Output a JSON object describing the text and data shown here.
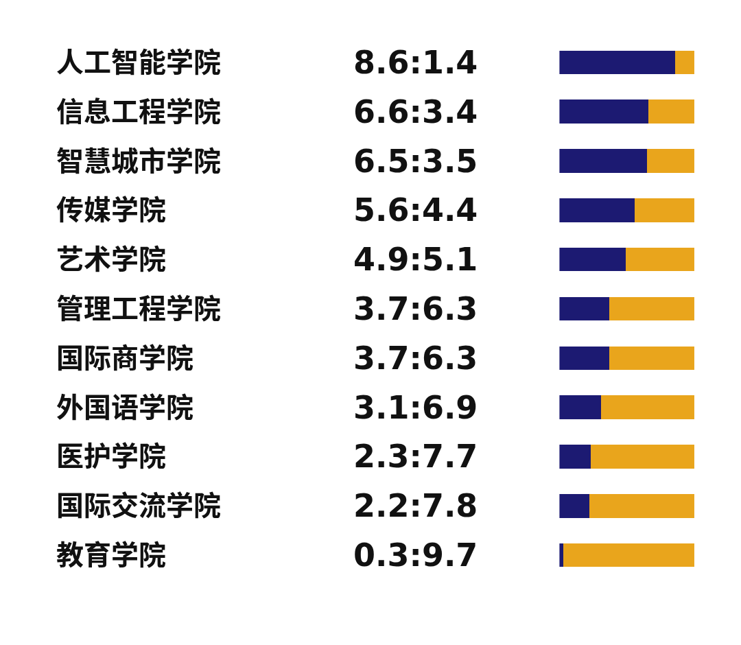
{
  "chart_data": {
    "type": "bar",
    "orientation": "horizontal",
    "stacked": true,
    "categories": [
      "人工智能学院",
      "信息工程学院",
      "智慧城市学院",
      "传媒学院",
      "艺术学院",
      "管理工程学院",
      "国际商学院",
      "外国语学院",
      "医护学院",
      "国际交流学院",
      "教育学院"
    ],
    "series": [
      {
        "color": "#1c1a72",
        "values": [
          8.6,
          6.6,
          6.5,
          5.6,
          4.9,
          3.7,
          3.7,
          3.1,
          2.3,
          2.2,
          0.3
        ],
        "value_labels": [
          "8.6:1.4",
          "6.6:3.4",
          "6.5:3.5",
          "5.6:4.4",
          "4.9:5.1",
          "3.7:6.3",
          "3.7:6.3",
          "3.1:6.9",
          "2.3:7.7",
          "2.2:7.8",
          "0.3:9.7"
        ]
      },
      {
        "color": "#e9a51c",
        "values": [
          1.4,
          3.4,
          3.5,
          4.4,
          5.1,
          6.3,
          6.3,
          6.9,
          7.7,
          7.8,
          9.7
        ]
      }
    ],
    "xlim": [
      0,
      10
    ],
    "tick_labels": false
  }
}
